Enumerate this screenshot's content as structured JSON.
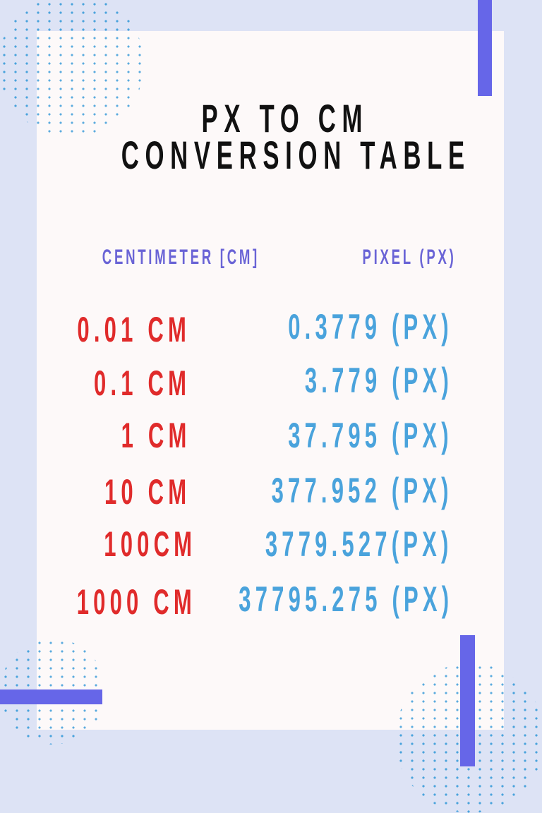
{
  "title": {
    "line1": "PX TO CM",
    "line2": "CONVERSION TABLE"
  },
  "headers": {
    "cm": "CENTIMETER [CM]",
    "px": "PIXEL (PX)"
  },
  "rows": [
    {
      "cm": "0.01 CM",
      "px": "0.3779 (PX)"
    },
    {
      "cm": "0.1 CM",
      "px": "3.779 (PX)"
    },
    {
      "cm": "1 CM",
      "px": "37.795 (PX)"
    },
    {
      "cm": "10 CM",
      "px": "377.952 (PX)"
    },
    {
      "cm": "100CM",
      "px": "3779.527(PX)"
    },
    {
      "cm": "1000 CM",
      "px": "37795.275 (PX)"
    }
  ],
  "colors": {
    "background": "#dde3f5",
    "card": "#fdf9f9",
    "accent_bar": "#6666e8",
    "header": "#6a64d6",
    "cm_value": "#e02b2b",
    "px_value": "#4aa3dc",
    "dots": "#4aa3dc"
  }
}
